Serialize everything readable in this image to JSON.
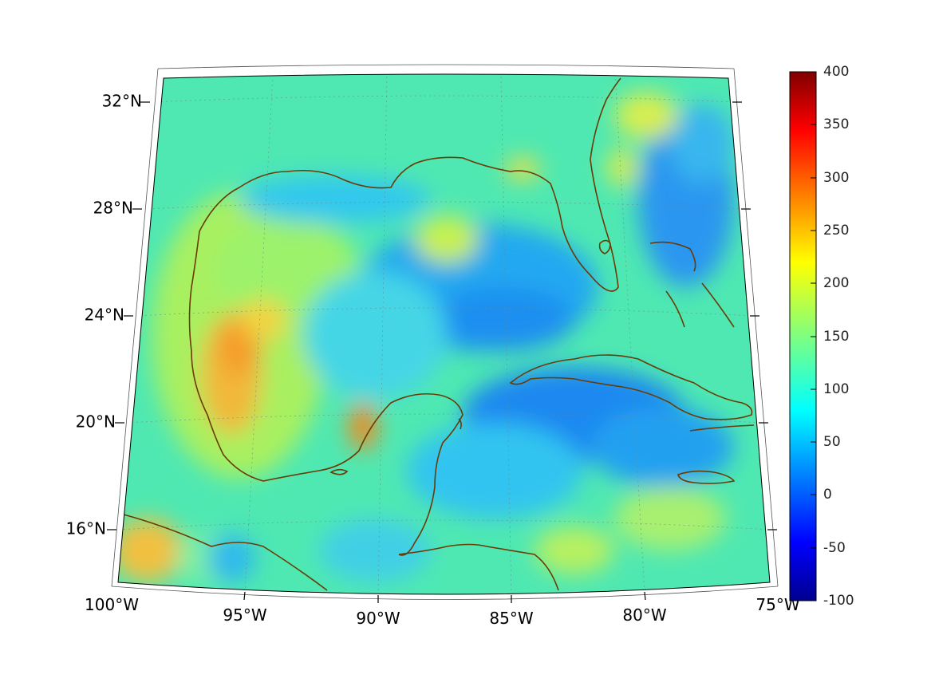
{
  "map": {
    "projection": "conic",
    "lon_range": [
      -100,
      -75
    ],
    "lat_range": [
      14,
      32
    ],
    "lat_labels": [
      "32°N",
      "28°N",
      "24°N",
      "20°N",
      "16°N"
    ],
    "lon_labels": [
      "100°W",
      "95°W",
      "90°W",
      "85°W",
      "80°W",
      "75°W"
    ],
    "coast_color": "#6b3a05",
    "grid": true
  },
  "colorbar": {
    "colormap": "jet",
    "min": -100,
    "max": 400,
    "tick_labels": [
      "400",
      "350",
      "300",
      "250",
      "200",
      "150",
      "100",
      "50",
      "0",
      "-50",
      "-100"
    ]
  }
}
